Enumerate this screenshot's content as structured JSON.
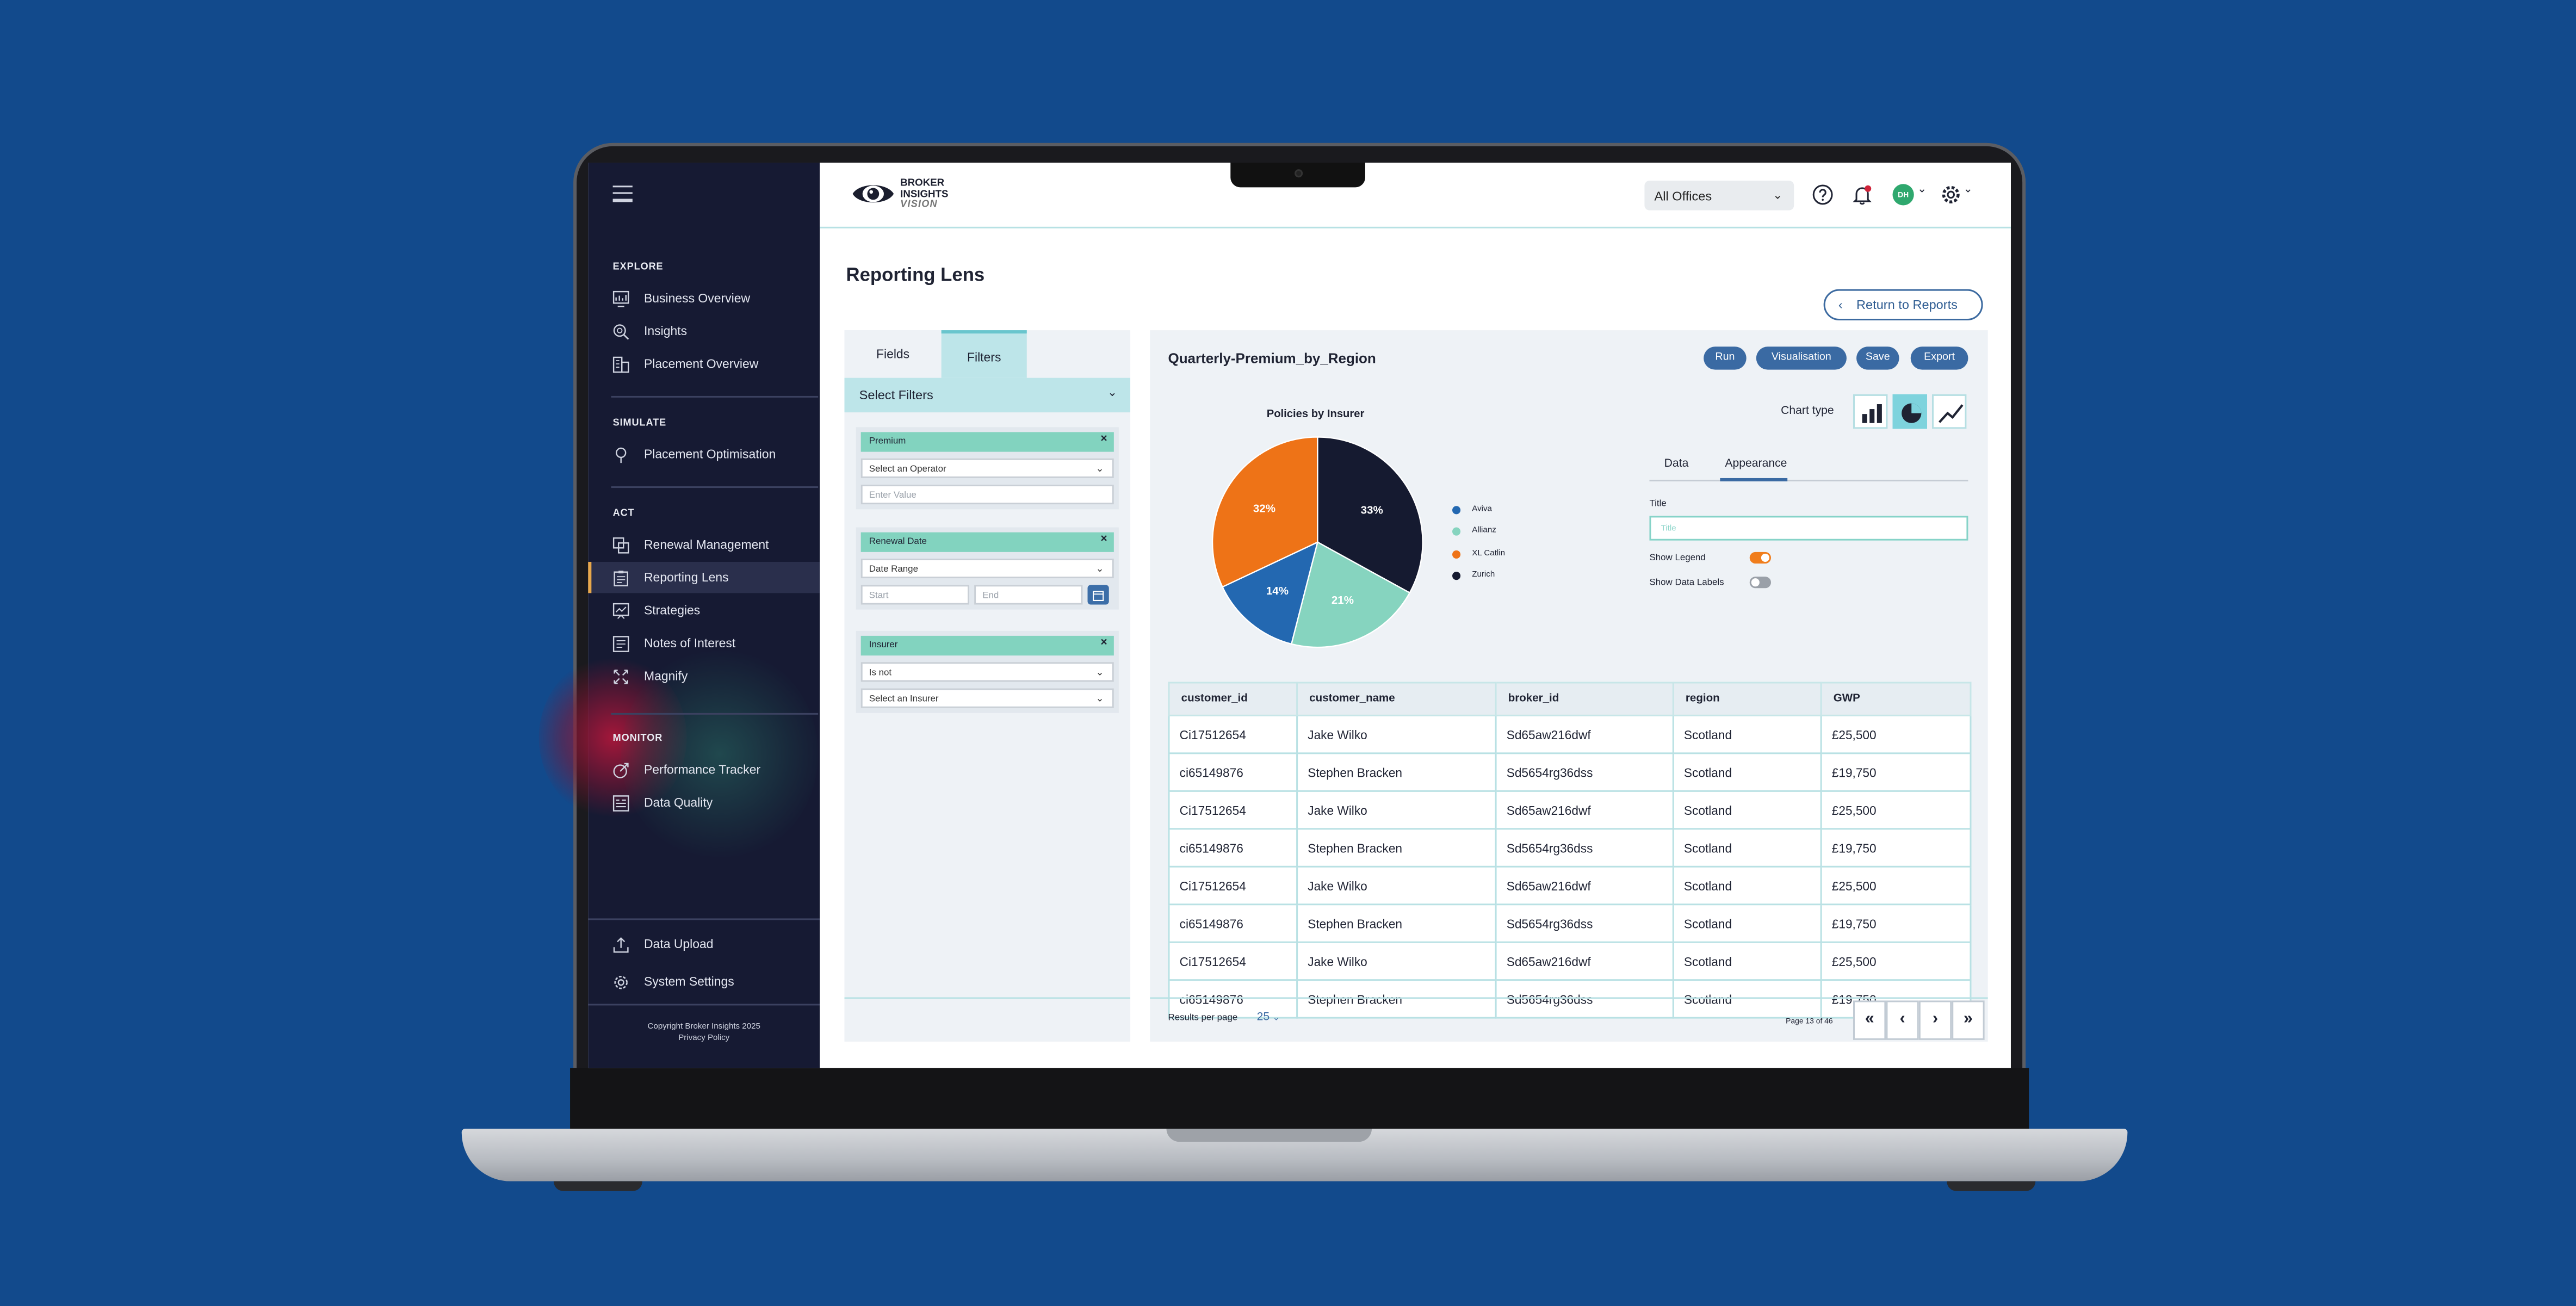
{
  "sidebar": {
    "sections": [
      {
        "title": "EXPLORE",
        "items": [
          "Business Overview",
          "Insights",
          "Placement Overview"
        ]
      },
      {
        "title": "SIMULATE",
        "items": [
          "Placement Optimisation"
        ]
      },
      {
        "title": "ACT",
        "items": [
          "Renewal Management",
          "Reporting Lens",
          "Strategies",
          "Notes of Interest",
          "Magnify"
        ]
      },
      {
        "title": "MONITOR",
        "items": [
          "Performance Tracker",
          "Data Quality"
        ]
      }
    ],
    "active_item": "Reporting Lens",
    "bottom_items": [
      "Data Upload",
      "System Settings"
    ],
    "copyright": "Copyright Broker Insights 2025",
    "privacy": "Privacy Policy"
  },
  "header": {
    "logo_line1": "BROKER",
    "logo_line2": "INSIGHTS",
    "logo_line3": "VISION",
    "office_select": "All Offices",
    "avatar_initials": "DH"
  },
  "page": {
    "title": "Reporting Lens",
    "return_button": "Return to Reports"
  },
  "filters": {
    "tabs": [
      "Fields",
      "Filters"
    ],
    "active_tab": "Filters",
    "select_filters_label": "Select Filters",
    "premium": {
      "label": "Premium",
      "operator_placeholder": "Select an Operator",
      "value_placeholder": "Enter Value"
    },
    "renewal_date": {
      "label": "Renewal Date",
      "range": "Date Range",
      "start_placeholder": "Start",
      "end_placeholder": "End"
    },
    "insurer": {
      "label": "Insurer",
      "operator": "Is not",
      "insurer_placeholder": "Select an Insurer"
    }
  },
  "report": {
    "title": "Quarterly-Premium_by_Region",
    "buttons": [
      "Run",
      "Visualisation",
      "Save",
      "Export"
    ],
    "chart_type_label": "Chart type",
    "chart_types": [
      "bar",
      "pie",
      "line"
    ],
    "selected_chart_type": "pie",
    "settings_tabs": [
      "Data",
      "Appearance"
    ],
    "active_settings_tab": "Appearance",
    "title_label": "Title",
    "title_placeholder": "Title",
    "show_legend_label": "Show Legend",
    "show_legend": true,
    "show_data_labels_label": "Show Data Labels",
    "show_data_labels": false
  },
  "chart_data": {
    "type": "pie",
    "title": "Policies by Insurer",
    "legend_entries": [
      "Aviva",
      "Allianz",
      "XL Catlin",
      "Zurich"
    ],
    "slices": [
      {
        "name": "Zurich",
        "value": 33,
        "label": "33%",
        "color": "#151a30"
      },
      {
        "name": "Allianz",
        "value": 21,
        "label": "21%",
        "color": "#86d4bf"
      },
      {
        "name": "Aviva",
        "value": 14,
        "label": "14%",
        "color": "#2368b1"
      },
      {
        "name": "XL Catlin",
        "value": 32,
        "label": "32%",
        "color": "#ee7317"
      }
    ],
    "legend_placement": "right"
  },
  "table": {
    "columns": [
      "customer_id",
      "customer_name",
      "broker_id",
      "region",
      "GWP"
    ],
    "rows": [
      [
        "Ci17512654",
        "Jake Wilko",
        "Sd65aw216dwf",
        "Scotland",
        "£25,500"
      ],
      [
        "ci65149876",
        "Stephen Bracken",
        "Sd5654rg36dss",
        "Scotland",
        "£19,750"
      ],
      [
        "Ci17512654",
        "Jake Wilko",
        "Sd65aw216dwf",
        "Scotland",
        "£25,500"
      ],
      [
        "ci65149876",
        "Stephen Bracken",
        "Sd5654rg36dss",
        "Scotland",
        "£19,750"
      ],
      [
        "Ci17512654",
        "Jake Wilko",
        "Sd65aw216dwf",
        "Scotland",
        "£25,500"
      ],
      [
        "ci65149876",
        "Stephen Bracken",
        "Sd5654rg36dss",
        "Scotland",
        "£19,750"
      ],
      [
        "Ci17512654",
        "Jake Wilko",
        "Sd65aw216dwf",
        "Scotland",
        "£25,500"
      ],
      [
        "ci65149876",
        "Stephen Bracken",
        "Sd5654rg36dss",
        "Scotland",
        "£19,750"
      ]
    ]
  },
  "pagination": {
    "results_label": "Results per page",
    "per_page": "25",
    "page_info": "Page 13 of 46"
  },
  "colors": {
    "background": "#124a8c",
    "sidebar": "#161a33",
    "accent": "#3a6aa3",
    "teal": "#bde5e9",
    "chip": "#82d3bf"
  }
}
